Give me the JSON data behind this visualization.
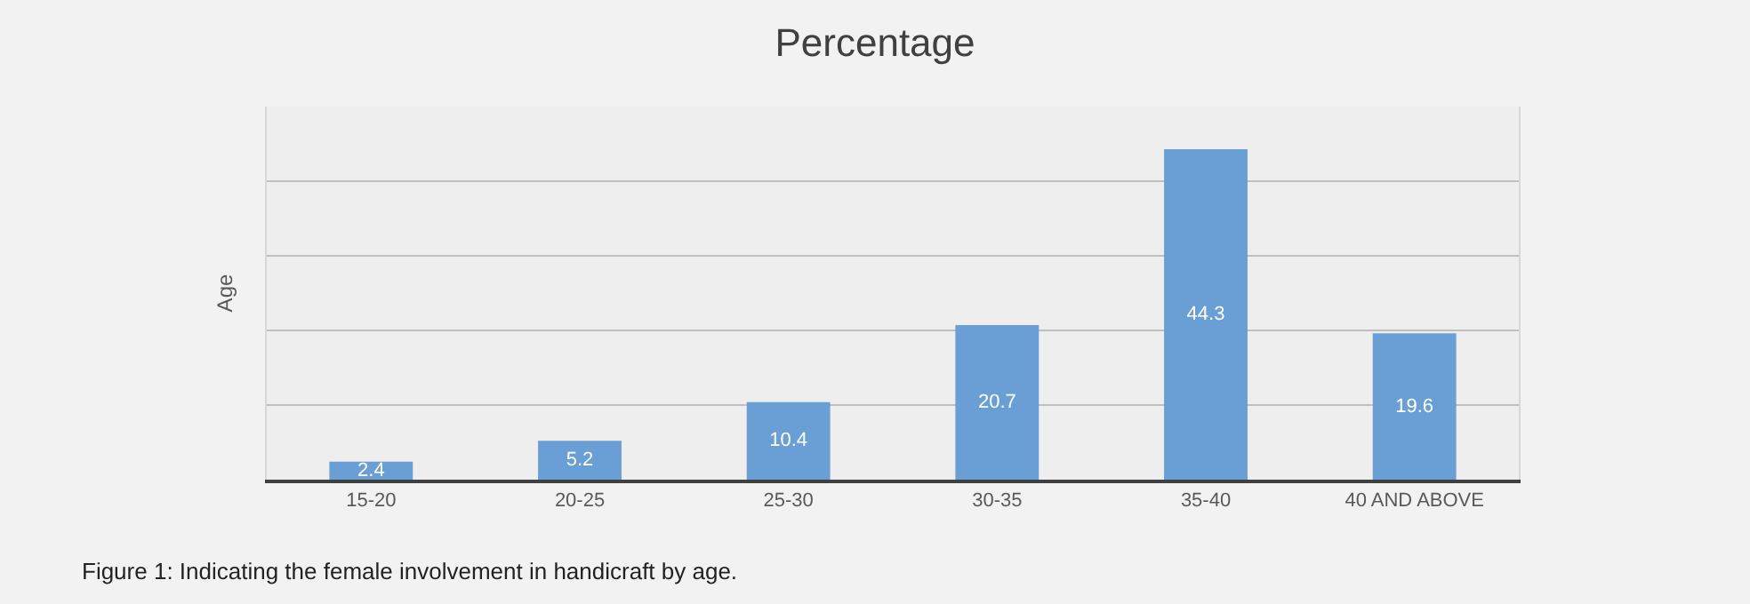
{
  "chart_data": {
    "type": "bar",
    "title": "Percentage",
    "ylabel": "Age",
    "categories": [
      "15-20",
      "20-25",
      "25-30",
      "30-35",
      "35-40",
      "40 AND ABOVE"
    ],
    "values": [
      2.4,
      5.2,
      10.4,
      20.7,
      44.3,
      19.6
    ],
    "color": "#6a9fd6",
    "ylim": [
      0,
      50
    ],
    "yticks": [
      {
        "value": 0,
        "label": null
      },
      {
        "value": 10,
        "label": null
      },
      {
        "value": 20,
        "label": null
      },
      {
        "value": 30,
        "label": null
      },
      {
        "value": 40,
        "label": null
      }
    ],
    "grid": "y",
    "tick_labels": "x",
    "data_labels": true,
    "legend": false,
    "annotations": [
      "Figure 1: Indicating the female involvement in handicraft by age."
    ]
  }
}
